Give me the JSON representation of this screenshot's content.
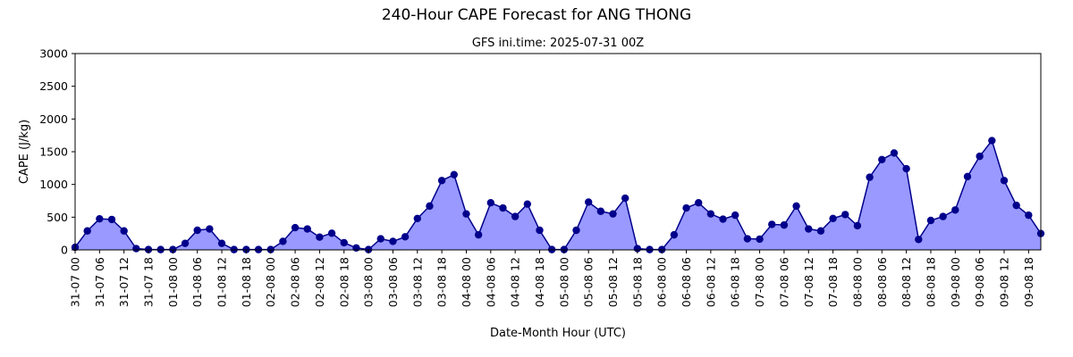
{
  "chart_data": {
    "type": "area",
    "title": "240-Hour CAPE Forecast for ANG THONG",
    "subtitle": "GFS ini.time: 2025-07-31 00Z",
    "xlabel": "Date-Month Hour (UTC)",
    "ylabel": "CAPE (J/kg)",
    "ylim": [
      0,
      3000
    ],
    "yticks": [
      0,
      500,
      1000,
      1500,
      2000,
      2500,
      3000
    ],
    "x_step_hours": 3,
    "x_tick_every_hours": 6,
    "x_ticks": [
      "31-07 00",
      "31-07 06",
      "31-07 12",
      "31-07 18",
      "01-08 00",
      "01-08 06",
      "01-08 12",
      "01-08 18",
      "02-08 00",
      "02-08 06",
      "02-08 12",
      "02-08 18",
      "03-08 00",
      "03-08 06",
      "03-08 12",
      "03-08 18",
      "04-08 00",
      "04-08 06",
      "04-08 12",
      "04-08 18",
      "05-08 00",
      "05-08 06",
      "05-08 12",
      "05-08 18",
      "06-08 00",
      "06-08 06",
      "06-08 12",
      "06-08 18",
      "07-08 00",
      "07-08 06",
      "07-08 12",
      "07-08 18",
      "08-08 00",
      "08-08 06",
      "08-08 12",
      "08-08 18",
      "09-08 00",
      "09-08 06",
      "09-08 12",
      "09-08 18"
    ],
    "grid": false,
    "legend": "none",
    "line_color": "#00008b",
    "fill_color": "#9999ff",
    "series": [
      {
        "values": [
          40,
          290,
          475,
          465,
          290,
          20,
          5,
          5,
          5,
          100,
          300,
          320,
          100,
          5,
          5,
          5,
          5,
          130,
          340,
          320,
          195,
          255,
          110,
          30,
          5,
          170,
          130,
          200,
          480,
          670,
          1060,
          1150,
          550,
          230,
          720,
          640,
          510,
          700,
          300,
          5,
          5,
          300,
          730,
          590,
          550,
          790,
          20,
          5,
          5,
          230,
          640,
          720,
          550,
          470,
          530,
          170,
          165,
          390,
          380,
          670,
          320,
          290,
          480,
          540,
          370,
          1110,
          1380,
          1480,
          1240,
          160,
          450,
          510,
          610,
          1120,
          1430,
          1670,
          1060,
          680,
          530,
          250
        ]
      }
    ]
  }
}
